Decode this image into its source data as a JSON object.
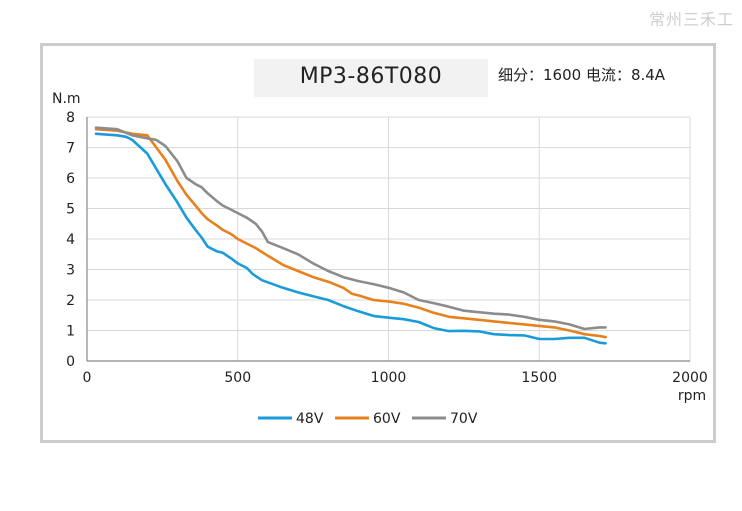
{
  "watermark": "常州三禾工",
  "spec": "细分：1600 电流：8.4A",
  "colors": {
    "48V": "#1a9cd8",
    "60V": "#e8801e",
    "70V": "#8c8c8c",
    "grid": "#d9d9d9",
    "axis": "#888888"
  },
  "chart_data": {
    "type": "line",
    "title": "MP3-86T080",
    "xlabel": "rpm",
    "ylabel": "N.m",
    "xlim": [
      0,
      2000
    ],
    "ylim": [
      0,
      8
    ],
    "xticks": [
      0,
      500,
      1000,
      1500,
      2000
    ],
    "yticks": [
      0,
      1,
      2,
      3,
      4,
      5,
      6,
      7,
      8
    ],
    "grid": true,
    "legend": "bottom",
    "series": [
      {
        "name": "48V",
        "x": [
          30,
          100,
          130,
          150,
          200,
          230,
          260,
          300,
          330,
          360,
          380,
          400,
          430,
          450,
          480,
          500,
          530,
          550,
          580,
          650,
          700,
          750,
          800,
          850,
          900,
          950,
          1000,
          1050,
          1100,
          1150,
          1200,
          1250,
          1300,
          1350,
          1400,
          1450,
          1500,
          1550,
          1600,
          1650,
          1700,
          1720
        ],
        "y": [
          7.45,
          7.4,
          7.35,
          7.25,
          6.8,
          6.3,
          5.8,
          5.2,
          4.7,
          4.3,
          4.05,
          3.75,
          3.6,
          3.55,
          3.35,
          3.2,
          3.05,
          2.85,
          2.65,
          2.4,
          2.25,
          2.12,
          2.0,
          1.8,
          1.63,
          1.48,
          1.42,
          1.37,
          1.28,
          1.08,
          0.98,
          0.99,
          0.97,
          0.88,
          0.85,
          0.84,
          0.72,
          0.72,
          0.76,
          0.76,
          0.6,
          0.58
        ]
      },
      {
        "name": "60V",
        "x": [
          30,
          100,
          150,
          200,
          230,
          260,
          300,
          330,
          360,
          380,
          400,
          430,
          450,
          480,
          500,
          530,
          560,
          600,
          650,
          700,
          750,
          800,
          850,
          880,
          900,
          950,
          1000,
          1050,
          1100,
          1150,
          1200,
          1250,
          1300,
          1350,
          1400,
          1450,
          1500,
          1550,
          1600,
          1650,
          1700,
          1720
        ],
        "y": [
          7.6,
          7.55,
          7.45,
          7.4,
          7.0,
          6.6,
          5.9,
          5.45,
          5.1,
          4.85,
          4.65,
          4.45,
          4.3,
          4.15,
          4.0,
          3.85,
          3.7,
          3.45,
          3.15,
          2.95,
          2.75,
          2.6,
          2.4,
          2.2,
          2.15,
          2.0,
          1.95,
          1.88,
          1.75,
          1.58,
          1.45,
          1.4,
          1.35,
          1.3,
          1.25,
          1.2,
          1.15,
          1.1,
          1.0,
          0.88,
          0.82,
          0.78
        ]
      },
      {
        "name": "70V",
        "x": [
          30,
          100,
          150,
          200,
          230,
          260,
          300,
          330,
          360,
          380,
          400,
          430,
          450,
          480,
          500,
          530,
          560,
          580,
          600,
          650,
          700,
          750,
          800,
          850,
          900,
          950,
          1000,
          1050,
          1100,
          1150,
          1200,
          1250,
          1300,
          1350,
          1400,
          1450,
          1500,
          1550,
          1600,
          1650,
          1700,
          1720
        ],
        "y": [
          7.65,
          7.6,
          7.4,
          7.3,
          7.25,
          7.05,
          6.55,
          6.0,
          5.8,
          5.7,
          5.5,
          5.25,
          5.1,
          4.95,
          4.85,
          4.7,
          4.5,
          4.25,
          3.9,
          3.7,
          3.5,
          3.2,
          2.95,
          2.75,
          2.62,
          2.52,
          2.4,
          2.25,
          2.0,
          1.9,
          1.78,
          1.65,
          1.6,
          1.55,
          1.52,
          1.45,
          1.35,
          1.3,
          1.2,
          1.05,
          1.1,
          1.1
        ]
      }
    ]
  }
}
